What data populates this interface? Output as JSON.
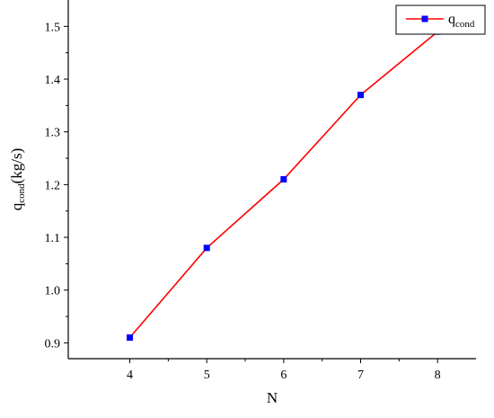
{
  "chart_data": {
    "type": "line",
    "x": [
      4,
      5,
      6,
      7,
      8
    ],
    "series": [
      {
        "name": "q",
        "name_sub": "cond",
        "values": [
          0.91,
          1.08,
          1.21,
          1.37,
          1.49
        ],
        "color": "#ff0000",
        "marker_color": "#0000ff"
      }
    ],
    "xlabel": "N",
    "ylabel": "q",
    "ylabel_sub": "cond",
    "ylabel_suffix": "(kg/s)",
    "xticks": [
      "4",
      "5",
      "6",
      "7",
      "8"
    ],
    "yticks": [
      "0.9",
      "1.0",
      "1.1",
      "1.2",
      "1.3",
      "1.4",
      "1.5"
    ],
    "xlim": [
      3.2,
      8.5
    ],
    "ylim": [
      0.87,
      1.55
    ],
    "grid": false,
    "legend_position": "top-right"
  }
}
